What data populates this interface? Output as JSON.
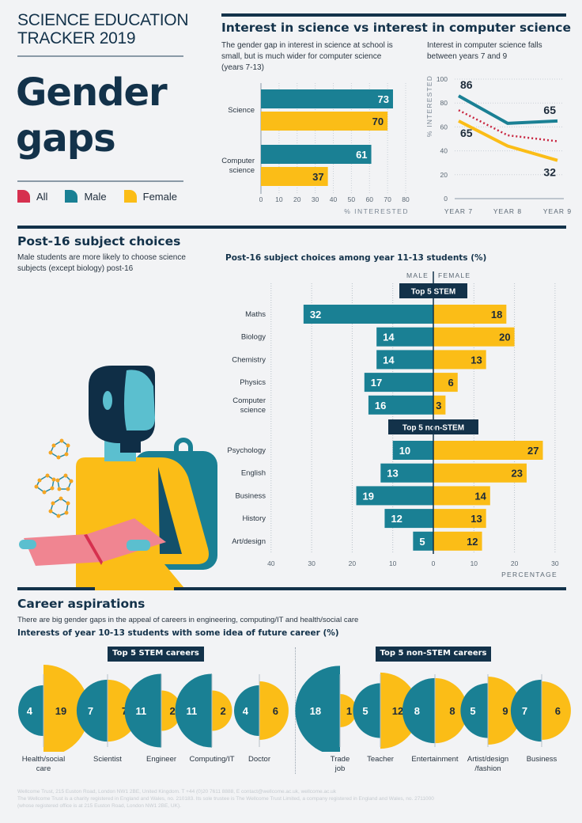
{
  "header": {
    "tracker_line1": "SCIENCE EDUCATION",
    "tracker_line2": "TRACKER 2019",
    "title_line1": "Gender",
    "title_line2": "gaps"
  },
  "legend": [
    {
      "label": "All",
      "color": "#d6304f"
    },
    {
      "label": "Male",
      "color": "#1a8094"
    },
    {
      "label": "Female",
      "color": "#fbbd17"
    }
  ],
  "colors": {
    "male": "#1a8094",
    "female": "#fbbd17",
    "all": "#c8243f",
    "navy": "#13324a"
  },
  "interest_section": {
    "title": "Interest in science vs interest in computer science",
    "left_caption": "The gender gap in interest in science at school is small, but is much wider for computer science (years 7-13)",
    "right_caption": "Interest in computer science falls between years 7 and 9"
  },
  "post16_section": {
    "title": "Post-16 subject choices",
    "caption": "Male students are more likely to choose science subjects (except biology) post-16",
    "chart_title": "Post-16 subject choices among year 11-13 students (%)"
  },
  "career_section": {
    "title": "Career aspirations",
    "caption": "There are big gender gaps in the appeal of careers in engineering, computing/IT and health/social care",
    "chart_title": "Interests of year 10-13 students with some idea of future career (%)"
  },
  "chart_data": [
    {
      "id": "interest-bar",
      "type": "bar",
      "orientation": "horizontal",
      "categories": [
        "Science",
        "Computer science"
      ],
      "series": [
        {
          "name": "Male",
          "values": [
            73,
            61
          ]
        },
        {
          "name": "Female",
          "values": [
            70,
            37
          ]
        }
      ],
      "xlabel": "% INTERESTED",
      "xticks": [
        0,
        10,
        20,
        30,
        40,
        50,
        60,
        70,
        80
      ],
      "xlim": [
        0,
        80
      ],
      "grid": true
    },
    {
      "id": "interest-line",
      "type": "line",
      "categories": [
        "YEAR 7",
        "YEAR 8",
        "YEAR 9"
      ],
      "series": [
        {
          "name": "Male",
          "values": [
            86,
            63,
            65
          ]
        },
        {
          "name": "All",
          "values": [
            74,
            53,
            48
          ],
          "style": "dotted"
        },
        {
          "name": "Female",
          "values": [
            65,
            44,
            32
          ]
        }
      ],
      "point_labels": [
        {
          "series": "Male",
          "index": 0,
          "text": "86"
        },
        {
          "series": "Male",
          "index": 2,
          "text": "65"
        },
        {
          "series": "Female",
          "index": 0,
          "text": "65"
        },
        {
          "series": "Female",
          "index": 2,
          "text": "32"
        }
      ],
      "ylabel": "% INTERESTED",
      "yticks": [
        0,
        20,
        40,
        60,
        80,
        100
      ],
      "ylim": [
        0,
        100
      ],
      "grid": true
    },
    {
      "id": "post16",
      "type": "bar",
      "orientation": "diverging",
      "side_labels": [
        "MALE",
        "FEMALE"
      ],
      "groups": [
        {
          "label": "Top 5 STEM",
          "categories": [
            "Maths",
            "Biology",
            "Chemistry",
            "Physics",
            "Computer science"
          ],
          "male": [
            32,
            14,
            14,
            17,
            16
          ],
          "female": [
            18,
            20,
            13,
            6,
            3
          ]
        },
        {
          "label": "Top 5 non-STEM",
          "categories": [
            "Psychology",
            "English",
            "Business",
            "History",
            "Art/design"
          ],
          "male": [
            10,
            13,
            19,
            12,
            5
          ],
          "female": [
            27,
            23,
            14,
            13,
            12
          ]
        }
      ],
      "xticks": [
        "40",
        "30",
        "20",
        "10",
        "0",
        "10",
        "20",
        "30"
      ],
      "xlabel": "PERCENTAGE",
      "xlim": [
        -40,
        30
      ],
      "grid": true
    },
    {
      "id": "careers",
      "type": "bar",
      "subtype": "half-circles",
      "groups": [
        {
          "label": "Top 5 STEM careers",
          "items": [
            {
              "name": "Health/social care",
              "male": 4,
              "female": 19
            },
            {
              "name": "Scientist",
              "male": 7,
              "female": 7
            },
            {
              "name": "Engineer",
              "male": 11,
              "female": 2
            },
            {
              "name": "Computing/IT",
              "male": 11,
              "female": 2
            },
            {
              "name": "Doctor",
              "male": 4,
              "female": 6
            }
          ]
        },
        {
          "label": "Top 5 non-STEM careers",
          "items": [
            {
              "name": "Trade job",
              "male": 18,
              "female": 1
            },
            {
              "name": "Teacher",
              "male": 5,
              "female": 12
            },
            {
              "name": "Entertainment",
              "male": 8,
              "female": 8
            },
            {
              "name": "Artist/design /fashion",
              "male": 5,
              "female": 9
            },
            {
              "name": "Business",
              "male": 7,
              "female": 6
            }
          ]
        }
      ]
    }
  ],
  "footer": {
    "line1": "Wellcome Trust, 215 Euston Road, London NW1 2BE, United Kingdom. T +44 (0)20 7611 8888, E contact@wellcome.ac.uk, wellcome.ac.uk",
    "line2": "The Wellcome Trust is a charity registered in England and Wales, no. 210183. Its sole trustee is The Wellcome Trust Limited, a company registered in England and Wales, no. 2711000 (whose registered office is at 215 Euston Road, London NW1 2BE, UK)."
  }
}
